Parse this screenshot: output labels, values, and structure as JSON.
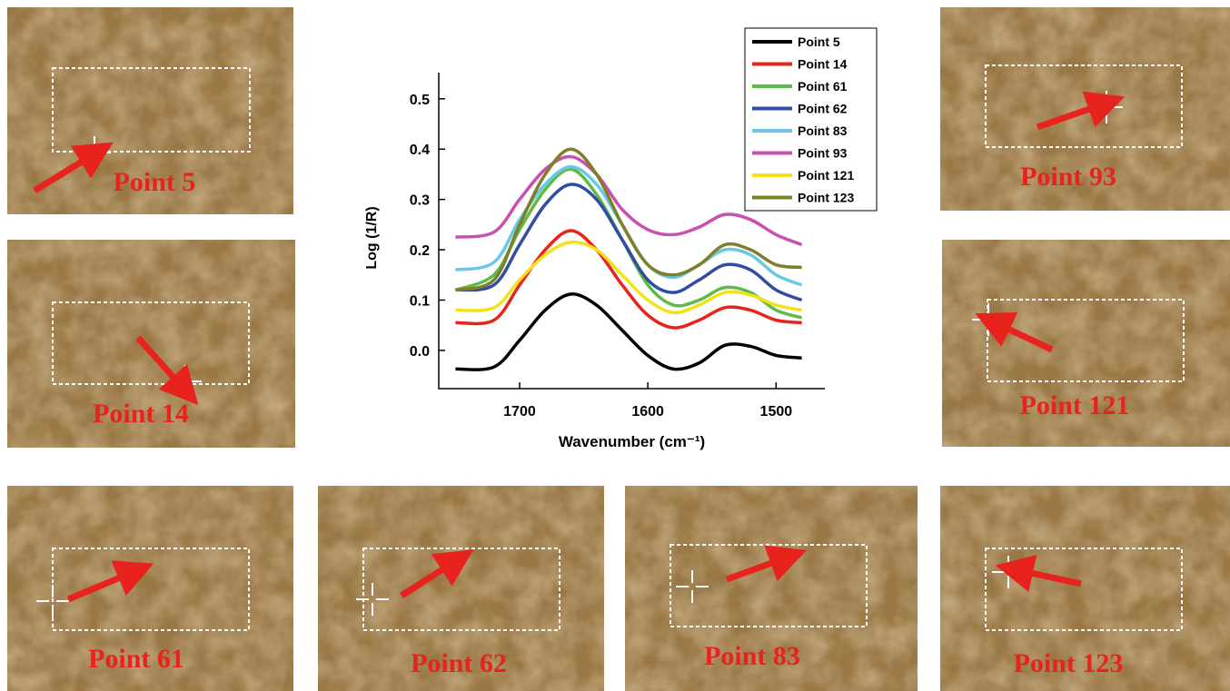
{
  "chart_data": {
    "type": "line",
    "x_label": "Wavenumber (cm⁻¹)",
    "y_label": "Log (1/R)",
    "x": [
      1750,
      1720,
      1700,
      1680,
      1660,
      1640,
      1620,
      1600,
      1580,
      1560,
      1540,
      1520,
      1500,
      1480
    ],
    "xlim": [
      1763,
      1462
    ],
    "xticks": [
      1700,
      1600,
      1500
    ],
    "ylim": [
      -0.076,
      0.552
    ],
    "yticks": [
      {
        "value": 0,
        "label": "0.0"
      },
      0.1,
      0.2,
      0.3,
      0.4,
      0.5
    ],
    "series": [
      {
        "name": "Point 5",
        "color": "#000000",
        "values": [
          -0.037,
          -0.033,
          0.02,
          0.08,
          0.112,
          0.09,
          0.04,
          -0.01,
          -0.037,
          -0.025,
          0.01,
          0.008,
          -0.01,
          -0.015
        ]
      },
      {
        "name": "Point 14",
        "color": "#e8231b",
        "values": [
          0.055,
          0.06,
          0.13,
          0.2,
          0.238,
          0.2,
          0.13,
          0.07,
          0.045,
          0.06,
          0.085,
          0.08,
          0.06,
          0.055
        ]
      },
      {
        "name": "Point 61",
        "color": "#5dbb46",
        "values": [
          0.12,
          0.15,
          0.24,
          0.32,
          0.36,
          0.31,
          0.22,
          0.13,
          0.09,
          0.1,
          0.125,
          0.115,
          0.08,
          0.065
        ]
      },
      {
        "name": "Point 62",
        "color": "#2f4ea3",
        "values": [
          0.12,
          0.13,
          0.21,
          0.29,
          0.33,
          0.3,
          0.22,
          0.14,
          0.115,
          0.14,
          0.17,
          0.16,
          0.12,
          0.1
        ]
      },
      {
        "name": "Point 83",
        "color": "#6ac8e6",
        "values": [
          0.16,
          0.175,
          0.26,
          0.33,
          0.365,
          0.33,
          0.25,
          0.17,
          0.145,
          0.17,
          0.2,
          0.19,
          0.15,
          0.13
        ]
      },
      {
        "name": "Point 93",
        "color": "#c94fb1",
        "values": [
          0.225,
          0.235,
          0.3,
          0.36,
          0.385,
          0.35,
          0.28,
          0.24,
          0.23,
          0.245,
          0.27,
          0.26,
          0.23,
          0.21
        ]
      },
      {
        "name": "Point 121",
        "color": "#f3e21a",
        "values": [
          0.08,
          0.085,
          0.14,
          0.19,
          0.215,
          0.2,
          0.15,
          0.1,
          0.075,
          0.09,
          0.115,
          0.11,
          0.09,
          0.08
        ]
      },
      {
        "name": "Point 123",
        "color": "#7f7f2a",
        "values": [
          0.12,
          0.14,
          0.25,
          0.35,
          0.4,
          0.35,
          0.25,
          0.17,
          0.15,
          0.17,
          0.21,
          0.2,
          0.17,
          0.165
        ]
      }
    ]
  },
  "panels": [
    {
      "label": "Point 5"
    },
    {
      "label": "Point 14"
    },
    {
      "label": "Point 61"
    },
    {
      "label": "Point 62"
    },
    {
      "label": "Point 83"
    },
    {
      "label": "Point 93"
    },
    {
      "label": "Point 121"
    },
    {
      "label": "Point 123"
    }
  ]
}
